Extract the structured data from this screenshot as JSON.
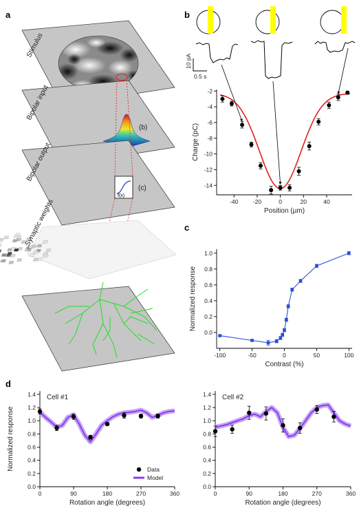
{
  "panel_labels": {
    "a": "a",
    "b": "b",
    "c": "c",
    "d": "d"
  },
  "panel_a": {
    "layers": [
      "Stimulus",
      "Bipolar input",
      "Bipolar output",
      "Synaptic weights"
    ],
    "callout_b": "(b)",
    "callout_c": "(c)",
    "fx_label": "f(x)",
    "colors": {
      "plate": "#c4c4c4",
      "dendrite": "#22dd22",
      "dashed": "#dd2222"
    }
  },
  "panel_b": {
    "scalebar_y": "10 pA",
    "scalebar_x": "0.5 s",
    "stimulus_bar_color": "#ffff00"
  },
  "chart_data": [
    {
      "id": "b",
      "type": "scatter",
      "title": "",
      "xlabel": "Position (µm)",
      "ylabel": "Charge (pC)",
      "xlim": [
        -55,
        62
      ],
      "ylim": [
        -15.2,
        -1.8
      ],
      "xticks": [
        -40,
        -20,
        0,
        20,
        40
      ],
      "yticks": [
        -14,
        -12,
        -10,
        -8,
        -6,
        -4,
        -2
      ],
      "fit_color": "#e02020",
      "x": [
        -50,
        -42,
        -33,
        -25,
        -17,
        -8,
        0,
        8,
        16,
        25,
        33,
        42,
        50,
        58
      ],
      "y": [
        -3.0,
        -3.6,
        -6.3,
        -8.8,
        -11.5,
        -14.6,
        -14.3,
        -14.3,
        -12.2,
        -9.0,
        -5.9,
        -3.8,
        -2.8,
        -2.2
      ],
      "err": [
        0.4,
        0.3,
        0.4,
        0.3,
        0.4,
        0.5,
        0.3,
        0.4,
        0.5,
        0.5,
        0.4,
        0.4,
        0.4,
        0.2
      ],
      "fit": {
        "baseline": -2.3,
        "amplitude": -12.1,
        "center": 0,
        "sigma": 18
      }
    },
    {
      "id": "c",
      "type": "line",
      "title": "",
      "xlabel": "Contrast (%)",
      "ylabel": "Normalized response",
      "xlim": [
        -105,
        105
      ],
      "ylim": [
        -0.2,
        1.05
      ],
      "xticks": [
        -100,
        -50,
        0,
        50,
        100
      ],
      "yticks": [
        0.0,
        0.2,
        0.4,
        0.6,
        0.8,
        1.0
      ],
      "color": "#2a4fd6",
      "x": [
        -100,
        -50,
        -25,
        -12,
        -6,
        -3,
        0,
        3,
        6,
        12,
        25,
        50,
        100
      ],
      "y": [
        -0.04,
        -0.1,
        -0.13,
        -0.11,
        -0.07,
        -0.03,
        0.03,
        0.16,
        0.33,
        0.54,
        0.65,
        0.84,
        1.0
      ],
      "err": [
        0.01,
        0.01,
        0.03,
        0.02,
        0.02,
        0.02,
        0.02,
        0.02,
        0.02,
        0.02,
        0.02,
        0.02,
        0.02
      ]
    },
    {
      "id": "d1",
      "type": "line",
      "title": "Cell #1",
      "xlabel": "Rotation angle (degrees)",
      "ylabel": "Normalized response",
      "xlim": [
        0,
        360
      ],
      "ylim": [
        0,
        1.45
      ],
      "xticks": [
        0,
        90,
        180,
        270,
        360
      ],
      "yticks": [
        0.0,
        0.2,
        0.4,
        0.6,
        0.8,
        1.0,
        1.2,
        1.4
      ],
      "data": {
        "x": [
          0,
          45,
          90,
          135,
          180,
          225,
          270,
          315
        ],
        "y": [
          1.14,
          0.89,
          1.06,
          0.75,
          0.95,
          1.08,
          1.07,
          1.07
        ],
        "err": [
          0.04,
          0.04,
          0.04,
          0.03,
          0.02,
          0.04,
          0.03,
          0.03
        ]
      },
      "model": {
        "x": [
          0,
          15,
          30,
          45,
          60,
          75,
          90,
          105,
          120,
          135,
          150,
          165,
          180,
          195,
          210,
          225,
          240,
          255,
          270,
          285,
          300,
          315,
          330,
          345,
          360
        ],
        "y": [
          1.13,
          1.05,
          0.98,
          0.9,
          0.93,
          1.05,
          1.09,
          0.95,
          0.78,
          0.68,
          0.8,
          0.93,
          1.0,
          1.06,
          1.1,
          1.12,
          1.13,
          1.14,
          1.16,
          1.12,
          1.05,
          1.08,
          1.12,
          1.14,
          1.15
        ]
      }
    },
    {
      "id": "d2",
      "type": "line",
      "title": "Cell #2",
      "xlabel": "Rotation angle (degrees)",
      "ylabel": "",
      "xlim": [
        0,
        360
      ],
      "ylim": [
        0,
        1.45
      ],
      "xticks": [
        0,
        90,
        180,
        270,
        360
      ],
      "yticks": [
        0.0,
        0.2,
        0.4,
        0.6,
        0.8,
        1.0,
        1.2,
        1.4
      ],
      "data": {
        "x": [
          0,
          45,
          90,
          135,
          180,
          225,
          270,
          315
        ],
        "y": [
          0.84,
          0.87,
          1.12,
          1.11,
          0.93,
          0.89,
          1.17,
          1.06
        ],
        "err": [
          0.08,
          0.06,
          0.1,
          0.1,
          0.1,
          0.08,
          0.06,
          0.08
        ]
      },
      "model": {
        "x": [
          0,
          15,
          30,
          45,
          60,
          75,
          90,
          105,
          120,
          135,
          150,
          165,
          180,
          195,
          210,
          225,
          240,
          255,
          270,
          285,
          300,
          315,
          330,
          345,
          360
        ],
        "y": [
          0.9,
          0.92,
          0.94,
          0.97,
          1.0,
          1.03,
          1.08,
          1.1,
          1.06,
          1.14,
          1.2,
          1.12,
          0.9,
          0.76,
          0.78,
          0.88,
          1.0,
          1.12,
          1.2,
          1.23,
          1.24,
          1.12,
          1.0,
          0.95,
          0.92
        ]
      }
    }
  ],
  "legend_d": {
    "data": "Data",
    "model": "Model",
    "model_color": "#8a3cf0"
  }
}
